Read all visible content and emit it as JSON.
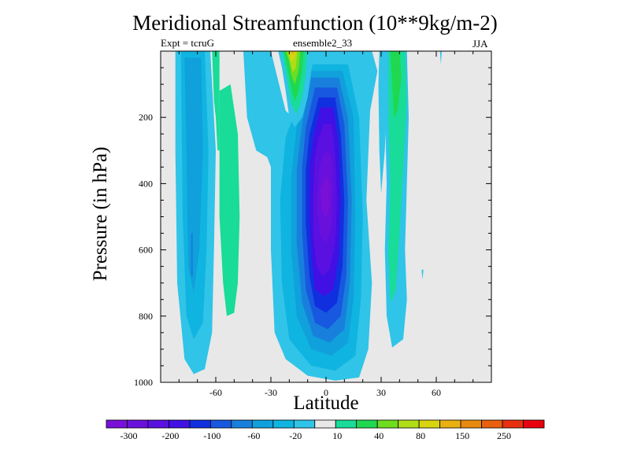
{
  "chart_data": {
    "type": "contour",
    "title": "Meridional Streamfunction (10**9kg/m-2)",
    "subtitle_left": "Expt = tcruG",
    "subtitle_center": "ensemble2_33",
    "subtitle_right": "JJA",
    "xlabel": "Latitude",
    "ylabel": "Pressure (in hPa)",
    "xlim": [
      -90,
      90
    ],
    "ylim": [
      1000,
      0
    ],
    "x_ticks": [
      "-60",
      "-30",
      "0",
      "30",
      "60"
    ],
    "x_tick_values": [
      -60,
      -30,
      0,
      30,
      60
    ],
    "y_ticks": [
      "200",
      "400",
      "600",
      "800",
      "1000"
    ],
    "y_tick_values": [
      200,
      400,
      600,
      800,
      1000
    ],
    "colorbar_labels": [
      "-300",
      "-200",
      "-100",
      "-60",
      "-20",
      "10",
      "40",
      "80",
      "150",
      "250"
    ],
    "colorbar_levels": [
      -350,
      -300,
      -250,
      -200,
      -150,
      -100,
      -80,
      -60,
      -40,
      -20,
      -10,
      10,
      20,
      40,
      60,
      80,
      100,
      150,
      200,
      250,
      300,
      350
    ],
    "colorbar_colors": [
      "#7a10d8",
      "#6a10dc",
      "#5a10e0",
      "#4010e4",
      "#1030e0",
      "#1858e0",
      "#1880dc",
      "#10a0dc",
      "#10b4e0",
      "#30c4e8",
      "#e8e8e8",
      "#18dc98",
      "#20d850",
      "#70dc20",
      "#b0dc18",
      "#d8d410",
      "#e8b010",
      "#e88a10",
      "#e86010",
      "#e83010",
      "#e80010"
    ],
    "features": [
      {
        "name": "southern-hemisphere-cell",
        "kind": "negative",
        "lat_range": [
          -80,
          -60
        ],
        "p_range": [
          0,
          970
        ],
        "min_value": -60
      },
      {
        "name": "thin-positive-band-south",
        "kind": "positive",
        "lat_range": [
          -60,
          -50
        ],
        "p_range": [
          0,
          790
        ],
        "max_value": 20
      },
      {
        "name": "hadley-cell",
        "kind": "negative",
        "lat_range": [
          -15,
          15
        ],
        "p_range": [
          40,
          990
        ],
        "min_value": -300
      },
      {
        "name": "upper-positive-cell",
        "kind": "positive",
        "lat_range": [
          -20,
          -10
        ],
        "p_range": [
          0,
          230
        ],
        "max_value": 60
      },
      {
        "name": "northern-positive-band",
        "kind": "positive",
        "lat_range": [
          30,
          45
        ],
        "p_range": [
          0,
          430
        ],
        "max_value": 40
      }
    ]
  }
}
